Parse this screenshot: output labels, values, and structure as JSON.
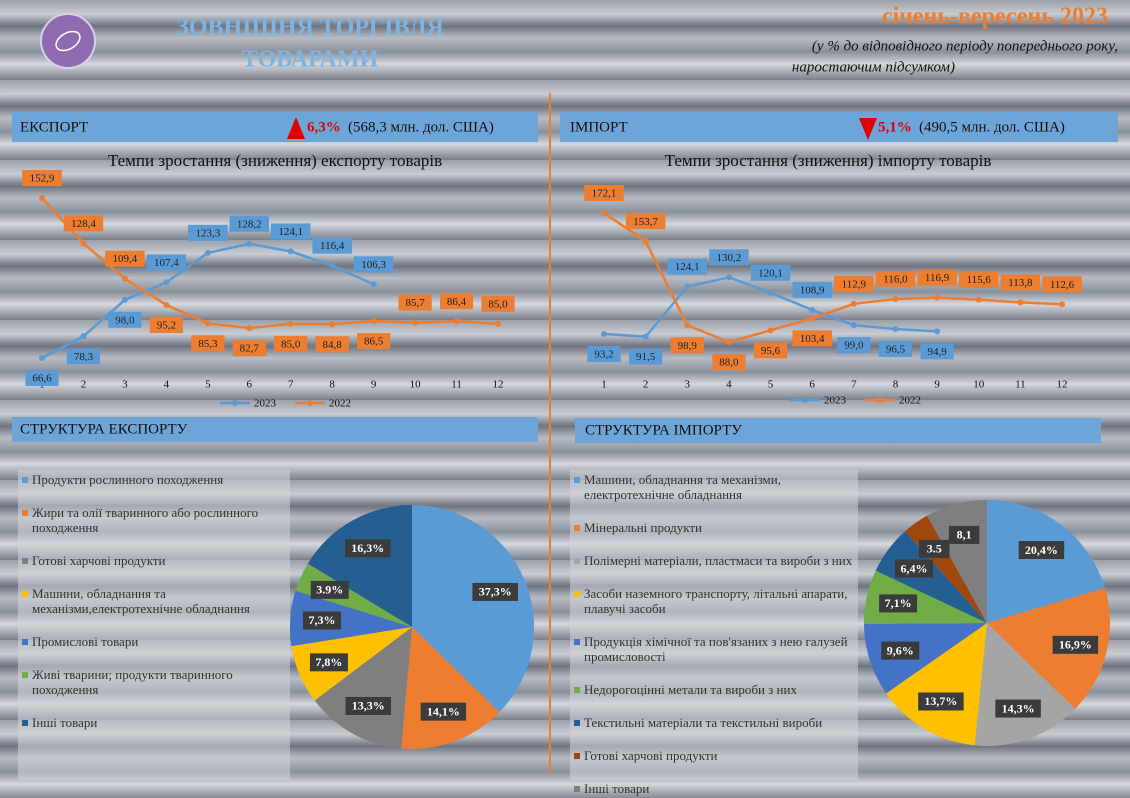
{
  "header": {
    "title_lines": [
      "ЗОВНІШНЯ ТОРГІВЛЯ",
      "ТОВАРАМИ"
    ],
    "period": "січень-вересень 2023",
    "note_lines": [
      "(у % до відповідного періоду попереднього року,",
      "наростаючим підсумком)"
    ]
  },
  "summary": [
    {
      "label": "ЕКСПОРТ",
      "change": "6,3%",
      "amount": "(568,3 млн. дол. США)"
    },
    {
      "label": "ІМПОРТ",
      "change": "5,1%",
      "amount": "(490,5 млн. дол. США)"
    }
  ],
  "chart_data": [
    {
      "type": "line",
      "title": "Темпи зростання (зниження) експорту товарів",
      "categories": [
        "1",
        "2",
        "3",
        "4",
        "5",
        "6",
        "7",
        "8",
        "9",
        "10",
        "11",
        "12"
      ],
      "series": [
        {
          "name": "2023",
          "color": "#5b9bd5",
          "values": [
            66.6,
            78.3,
            98.0,
            107.4,
            123.3,
            128.2,
            124.1,
            116.4,
            106.3,
            null,
            null,
            null
          ],
          "value_labels": [
            "66,6",
            "78,3",
            "98,0",
            "107,4",
            "123,3",
            "128,2",
            "124,1",
            "116,4",
            "106,3",
            null,
            null,
            null
          ]
        },
        {
          "name": "2022",
          "color": "#ed7d31",
          "values": [
            152.9,
            128.4,
            109.4,
            95.2,
            85.3,
            82.7,
            85.0,
            84.8,
            86.5,
            85.7,
            86.4,
            85.0
          ],
          "value_labels": [
            "152,9",
            "128,4",
            "109,4",
            "95,2",
            "85,3",
            "82,7",
            "85,0",
            "84,8",
            "86,5",
            "85,7",
            "86,4",
            "85,0"
          ]
        }
      ]
    },
    {
      "type": "line",
      "title": "Темпи зростання (зниження) імпорту товарів",
      "categories": [
        "1",
        "2",
        "3",
        "4",
        "5",
        "6",
        "7",
        "8",
        "9",
        "10",
        "11",
        "12"
      ],
      "series": [
        {
          "name": "2023",
          "color": "#5b9bd5",
          "values": [
            93.2,
            91.5,
            124.1,
            130.2,
            120.1,
            108.9,
            99.0,
            96.5,
            94.9,
            null,
            null,
            null
          ],
          "value_labels": [
            "93,2",
            "91,5",
            "124,1",
            "130,2",
            "120,1",
            "108,9",
            "99,0",
            "96,5",
            "94,9",
            null,
            null,
            null
          ]
        },
        {
          "name": "2022",
          "color": "#ed7d31",
          "values": [
            172.1,
            153.7,
            98.9,
            88.0,
            95.6,
            103.4,
            112.9,
            116.0,
            116.9,
            115.6,
            113.8,
            112.6
          ],
          "value_labels": [
            "172,1",
            "153,7",
            "98,9",
            "88,0",
            "95,6",
            "103,4",
            "112,9",
            "116,0",
            "116,9",
            "115,6",
            "113,8",
            "112,6"
          ]
        }
      ]
    },
    {
      "type": "pie",
      "title": "СТРУКТУРА ЕКСПОРТУ",
      "categories": [
        "Продукти рослинного походження",
        "Жири та олії тваринного або рослинного походження",
        "Готові харчові продукти",
        "Машини, обладнання та механізми,електротехнічне обладнання",
        "Промислові товари",
        "Живі тварини; продукти тваринного походження",
        "Інші товари"
      ],
      "values": [
        37.3,
        14.1,
        13.3,
        7.8,
        7.3,
        3.9,
        16.3
      ],
      "value_labels": [
        "37,3%",
        "14,1%",
        "13,3%",
        "7,8%",
        "7,3%",
        "3.9%",
        "16,3%"
      ],
      "colors": [
        "#5b9bd5",
        "#ed7d31",
        "#7f7f7f",
        "#ffc000",
        "#4472c4",
        "#70ad47",
        "#255e91"
      ]
    },
    {
      "type": "pie",
      "title": "СТРУКТУРА ІМПОРТУ",
      "categories": [
        "Машини, обладнання та механізми, електротехнічне обладнання",
        "Мінеральні продукти",
        "Полімерні матеріали, пластмаси та вироби з них",
        "Засоби наземного транспорту, літальні апарати, плавучі засоби",
        "Продукція хімічної та пов'язаних з нею галузей промисловості",
        "Недорогоцінні метали та вироби з них",
        "Текстильні матеріали та текстильні вироби",
        "Готові харчові продукти",
        "Інші товари"
      ],
      "values": [
        20.4,
        16.9,
        14.3,
        13.7,
        9.6,
        7.1,
        6.4,
        3.5,
        8.1
      ],
      "value_labels": [
        "20,4%",
        "16,9%",
        "14,3%",
        "13,7%",
        "9,6%",
        "7,1%",
        "6,4%",
        "3.5",
        "8,1"
      ],
      "colors": [
        "#5b9bd5",
        "#ed7d31",
        "#a5a5a5",
        "#ffc000",
        "#4472c4",
        "#70ad47",
        "#255e91",
        "#9e480e",
        "#7f7f7f"
      ]
    }
  ]
}
